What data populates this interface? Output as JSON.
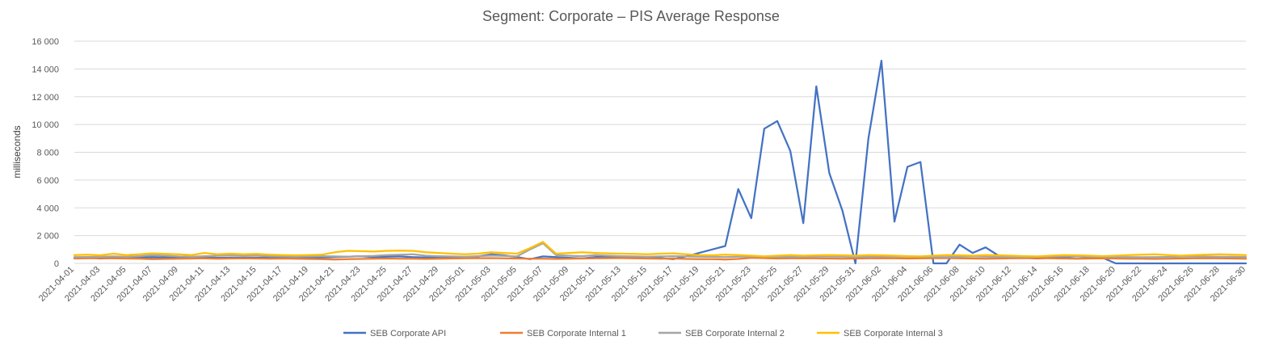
{
  "chart_data": {
    "type": "line",
    "title": "Segment: Corporate – PIS Average Response",
    "ylabel": "milliseconds",
    "xlabel": "",
    "ylim": [
      0,
      16000
    ],
    "yticks": [
      0,
      2000,
      4000,
      6000,
      8000,
      10000,
      12000,
      14000,
      16000
    ],
    "ytick_labels": [
      "0",
      "2 000",
      "4 000",
      "6 000",
      "8 000",
      "10 000",
      "12 000",
      "14 000",
      "16 000"
    ],
    "grid": "horizontal",
    "legend_position": "bottom",
    "x_tick_labels": [
      "2021-04-01",
      "2021-04-03",
      "2021-04-05",
      "2021-04-07",
      "2021-04-09",
      "2021-04-11",
      "2021-04-13",
      "2021-04-15",
      "2021-04-17",
      "2021-04-19",
      "2021-04-21",
      "2021-04-23",
      "2021-04-25",
      "2021-04-27",
      "2021-04-29",
      "2021-05-01",
      "2021-05-03",
      "2021-05-05",
      "2021-05-07",
      "2021-05-09",
      "2021-05-11",
      "2021-05-13",
      "2021-05-15",
      "2021-05-17",
      "2021-05-19",
      "2021-05-21",
      "2021-05-23",
      "2021-05-25",
      "2021-05-27",
      "2021-05-29",
      "2021-05-31",
      "2021-06-02",
      "2021-06-04",
      "2021-06-06",
      "2021-06-08",
      "2021-06-10",
      "2021-06-12",
      "2021-06-14",
      "2021-06-16",
      "2021-06-18",
      "2021-06-20",
      "2021-06-22",
      "2021-06-24",
      "2021-06-26",
      "2021-06-28",
      "2021-06-30"
    ],
    "x": [
      "2021-04-01",
      "2021-04-02",
      "2021-04-03",
      "2021-04-04",
      "2021-04-05",
      "2021-04-06",
      "2021-04-07",
      "2021-04-08",
      "2021-04-09",
      "2021-04-10",
      "2021-04-11",
      "2021-04-12",
      "2021-04-13",
      "2021-04-14",
      "2021-04-15",
      "2021-04-16",
      "2021-04-17",
      "2021-04-18",
      "2021-04-19",
      "2021-04-20",
      "2021-04-21",
      "2021-04-22",
      "2021-04-23",
      "2021-04-24",
      "2021-04-25",
      "2021-04-26",
      "2021-04-27",
      "2021-04-28",
      "2021-04-29",
      "2021-04-30",
      "2021-05-01",
      "2021-05-02",
      "2021-05-03",
      "2021-05-04",
      "2021-05-05",
      "2021-05-06",
      "2021-05-07",
      "2021-05-08",
      "2021-05-09",
      "2021-05-10",
      "2021-05-11",
      "2021-05-12",
      "2021-05-13",
      "2021-05-14",
      "2021-05-15",
      "2021-05-16",
      "2021-05-17",
      "2021-05-18",
      "2021-05-19",
      "2021-05-20",
      "2021-05-21",
      "2021-05-22",
      "2021-05-23",
      "2021-05-24",
      "2021-05-25",
      "2021-05-26",
      "2021-05-27",
      "2021-05-28",
      "2021-05-29",
      "2021-05-30",
      "2021-05-31",
      "2021-06-01",
      "2021-06-02",
      "2021-06-03",
      "2021-06-04",
      "2021-06-05",
      "2021-06-06",
      "2021-06-07",
      "2021-06-08",
      "2021-06-09",
      "2021-06-10",
      "2021-06-11",
      "2021-06-12",
      "2021-06-13",
      "2021-06-14",
      "2021-06-15",
      "2021-06-16",
      "2021-06-17",
      "2021-06-18",
      "2021-06-19",
      "2021-06-20",
      "2021-06-21",
      "2021-06-22",
      "2021-06-23",
      "2021-06-24",
      "2021-06-25",
      "2021-06-26",
      "2021-06-27",
      "2021-06-28",
      "2021-06-29",
      "2021-06-30"
    ],
    "series": [
      {
        "name": "SEB Corporate API",
        "color": "#4472C4",
        "values": [
          400,
          420,
          350,
          380,
          400,
          420,
          450,
          430,
          400,
          420,
          450,
          400,
          420,
          430,
          400,
          420,
          450,
          400,
          380,
          420,
          450,
          480,
          520,
          450,
          480,
          500,
          450,
          420,
          450,
          480,
          450,
          500,
          650,
          580,
          450,
          300,
          500,
          450,
          400,
          350,
          450,
          500,
          450,
          420,
          400,
          380,
          300,
          500,
          750,
          1000,
          1250,
          5350,
          3250,
          9700,
          10250,
          8100,
          2900,
          12750,
          6500,
          3800,
          0,
          9000,
          14600,
          3000,
          6950,
          7300,
          0,
          0,
          1350,
          750,
          1150,
          550,
          500,
          400,
          350,
          400,
          450,
          500,
          450,
          400,
          0,
          0,
          0,
          0,
          0,
          0,
          0,
          0,
          0,
          0,
          0
        ]
      },
      {
        "name": "SEB Corporate Internal 1",
        "color": "#ED7D31",
        "values": [
          350,
          360,
          370,
          360,
          350,
          340,
          300,
          320,
          340,
          350,
          360,
          340,
          350,
          360,
          350,
          340,
          350,
          330,
          320,
          300,
          280,
          300,
          320,
          340,
          350,
          340,
          330,
          320,
          340,
          350,
          360,
          370,
          380,
          360,
          350,
          340,
          330,
          320,
          340,
          350,
          360,
          370,
          380,
          360,
          350,
          340,
          350,
          320,
          300,
          310,
          280,
          320,
          400,
          380,
          350,
          360,
          370,
          360,
          350,
          340,
          350,
          360,
          370,
          360,
          350,
          360,
          370,
          380,
          360,
          350,
          340,
          350,
          360,
          370,
          380,
          360,
          350,
          340,
          350,
          360,
          350,
          340,
          330,
          320,
          340,
          350,
          360,
          370,
          360,
          350,
          340
        ]
      },
      {
        "name": "SEB Corporate Internal 2",
        "color": "#A5A5A5",
        "values": [
          450,
          460,
          480,
          500,
          470,
          520,
          600,
          550,
          500,
          480,
          520,
          550,
          600,
          580,
          550,
          520,
          500,
          480,
          500,
          520,
          500,
          480,
          520,
          540,
          600,
          620,
          650,
          550,
          520,
          500,
          480,
          520,
          560,
          540,
          500,
          1000,
          1450,
          600,
          550,
          520,
          600,
          550,
          520,
          500,
          480,
          500,
          520,
          500,
          480,
          470,
          450,
          480,
          500,
          480,
          460,
          470,
          480,
          500,
          490,
          480,
          470,
          480,
          500,
          490,
          480,
          470,
          460,
          450,
          480,
          500,
          480,
          470,
          460,
          450,
          480,
          500,
          520,
          500,
          480,
          470,
          460,
          450,
          440,
          450,
          460,
          480,
          500,
          490,
          480,
          470,
          460
        ]
      },
      {
        "name": "SEB Corporate Internal 3",
        "color": "#FFC000",
        "values": [
          600,
          620,
          580,
          700,
          600,
          650,
          720,
          680,
          650,
          600,
          750,
          650,
          700,
          650,
          680,
          620,
          600,
          580,
          600,
          620,
          800,
          900,
          880,
          850,
          900,
          920,
          900,
          800,
          750,
          700,
          650,
          700,
          800,
          750,
          700,
          1100,
          1550,
          700,
          750,
          800,
          750,
          720,
          700,
          680,
          650,
          700,
          720,
          650,
          600,
          580,
          620,
          600,
          550,
          500,
          550,
          600,
          550,
          580,
          600,
          580,
          550,
          600,
          580,
          550,
          520,
          500,
          550,
          600,
          580,
          550,
          600,
          580,
          550,
          520,
          500,
          550,
          600,
          580,
          550,
          520,
          550,
          600,
          620,
          650,
          600,
          550,
          600,
          620,
          650,
          620,
          600
        ]
      }
    ]
  }
}
